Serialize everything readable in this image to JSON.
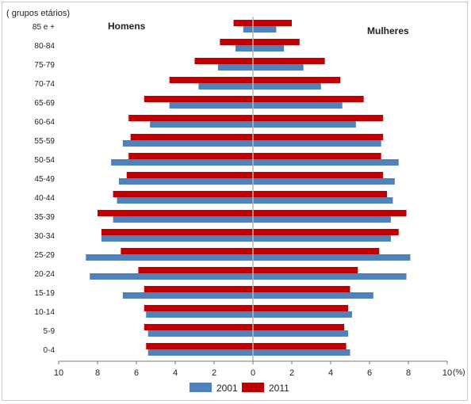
{
  "chart_data": {
    "type": "bar",
    "orientation": "horizontal",
    "subtype": "population-pyramid",
    "y_axis_title": "( grupos etários)",
    "x_unit": "(%)",
    "left_side_label": "Homens",
    "right_side_label": "Mulheres",
    "categories": [
      "85 e +",
      "80-84",
      "75-79",
      "70-74",
      "65-69",
      "60-64",
      "55-59",
      "50-54",
      "45-49",
      "40-44",
      "35-39",
      "30-34",
      "25-29",
      "20-24",
      "15-19",
      "10-14",
      "5-9",
      "0-4"
    ],
    "x_ticks": [
      "10",
      "8",
      "6",
      "4",
      "2",
      "0",
      "2",
      "4",
      "6",
      "8",
      "10"
    ],
    "xlim": [
      0,
      10
    ],
    "colors": {
      "2001": "#4f81bd",
      "2011": "#c00000"
    },
    "series": [
      {
        "name": "2001",
        "men": [
          0.5,
          0.9,
          1.8,
          2.8,
          4.3,
          5.3,
          6.7,
          7.3,
          6.9,
          7.0,
          7.2,
          7.8,
          8.6,
          8.4,
          6.7,
          5.5,
          5.4,
          5.4
        ],
        "women": [
          1.2,
          1.6,
          2.6,
          3.5,
          4.6,
          5.3,
          6.6,
          7.5,
          7.3,
          7.2,
          7.1,
          7.1,
          8.1,
          7.9,
          6.2,
          5.1,
          4.9,
          5.0
        ]
      },
      {
        "name": "2011",
        "men": [
          1.0,
          1.7,
          3.0,
          4.3,
          5.6,
          6.4,
          6.3,
          6.4,
          6.5,
          7.2,
          8.0,
          7.8,
          6.8,
          5.9,
          5.6,
          5.6,
          5.6,
          5.5
        ],
        "women": [
          2.0,
          2.4,
          3.7,
          4.5,
          5.7,
          6.7,
          6.7,
          6.6,
          6.7,
          6.9,
          7.9,
          7.5,
          6.5,
          5.4,
          5.0,
          4.9,
          4.7,
          4.8
        ]
      }
    ],
    "legend_position": "bottom",
    "grid": false
  }
}
